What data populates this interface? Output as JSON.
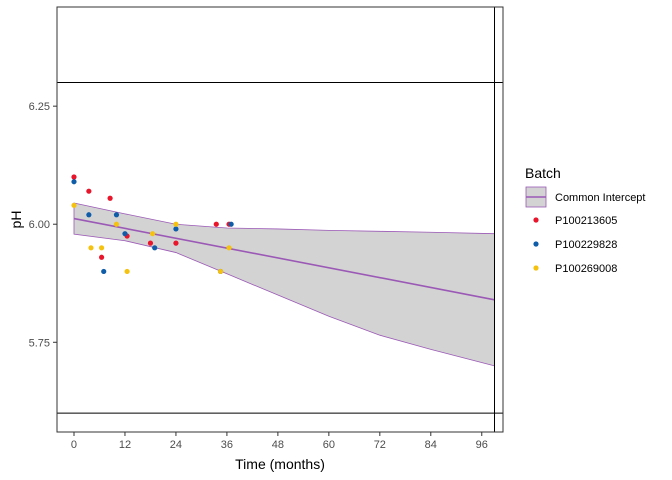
{
  "chart_data": {
    "type": "scatter",
    "xlabel": "Time (months)",
    "ylabel": "pH",
    "xlim": [
      -4,
      101
    ],
    "ylim": [
      5.56,
      6.46
    ],
    "x_ticks": [
      0,
      12,
      24,
      36,
      48,
      60,
      72,
      84,
      96
    ],
    "y_ticks": [
      5.75,
      6.0,
      6.25
    ],
    "grid": false,
    "spec_limits": {
      "upper": 6.3,
      "lower": 5.6,
      "color": "#000000"
    },
    "shelf_life_x": 99,
    "regression": {
      "name": "Common Intercept",
      "color": "#9b59b6",
      "fill": "#d3d3d3",
      "fit": [
        [
          0,
          6.012
        ],
        [
          99,
          5.84
        ]
      ],
      "upper_band": [
        [
          0,
          6.045
        ],
        [
          12,
          6.022
        ],
        [
          24,
          6.0
        ],
        [
          36,
          5.992
        ],
        [
          48,
          5.99
        ],
        [
          60,
          5.987
        ],
        [
          72,
          5.985
        ],
        [
          84,
          5.983
        ],
        [
          99,
          5.98
        ]
      ],
      "lower_band": [
        [
          0,
          5.979
        ],
        [
          12,
          5.965
        ],
        [
          24,
          5.94
        ],
        [
          36,
          5.895
        ],
        [
          48,
          5.85
        ],
        [
          60,
          5.805
        ],
        [
          72,
          5.765
        ],
        [
          84,
          5.735
        ],
        [
          99,
          5.7
        ]
      ]
    },
    "legend": {
      "title": "Batch",
      "placement": "right"
    },
    "series": [
      {
        "name": "P100213605",
        "color": "#e8152b",
        "points": [
          [
            0,
            6.1
          ],
          [
            3.5,
            6.07
          ],
          [
            6.5,
            5.93
          ],
          [
            8.5,
            6.055
          ],
          [
            12.5,
            5.975
          ],
          [
            18,
            5.96
          ],
          [
            24,
            5.96
          ],
          [
            33.5,
            6.0
          ],
          [
            36.5,
            6.0
          ]
        ]
      },
      {
        "name": "P100229828",
        "color": "#0f5ca8",
        "points": [
          [
            0,
            6.09
          ],
          [
            3.5,
            6.02
          ],
          [
            7,
            5.9
          ],
          [
            10,
            6.02
          ],
          [
            12,
            5.98
          ],
          [
            19,
            5.95
          ],
          [
            24,
            5.99
          ],
          [
            34.5,
            5.9
          ],
          [
            37,
            6.0
          ]
        ]
      },
      {
        "name": "P100269008",
        "color": "#f5c20f",
        "points": [
          [
            0,
            6.04
          ],
          [
            4,
            5.95
          ],
          [
            6.5,
            5.95
          ],
          [
            10,
            6.0
          ],
          [
            12.5,
            5.9
          ],
          [
            18.5,
            5.98
          ],
          [
            24,
            6.0
          ],
          [
            34.5,
            5.9
          ],
          [
            36.5,
            5.95
          ]
        ]
      }
    ]
  }
}
